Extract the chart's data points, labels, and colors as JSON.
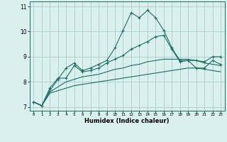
{
  "xlabel": "Humidex (Indice chaleur)",
  "x_ticks": [
    0,
    1,
    2,
    3,
    4,
    5,
    6,
    7,
    8,
    9,
    10,
    11,
    12,
    13,
    14,
    15,
    16,
    17,
    18,
    19,
    20,
    21,
    22,
    23
  ],
  "ylim": [
    6.85,
    11.2
  ],
  "xlim": [
    -0.5,
    23.5
  ],
  "yticks": [
    7,
    8,
    9,
    10,
    11
  ],
  "bg_color": "#daf0ee",
  "line_color": "#1a6e64",
  "grid_color": "#aacccc",
  "line1": [
    7.2,
    7.05,
    7.65,
    8.1,
    8.55,
    8.75,
    8.45,
    8.55,
    8.7,
    8.85,
    9.35,
    10.05,
    10.75,
    10.55,
    10.85,
    10.55,
    10.05,
    9.35,
    8.85,
    8.85,
    8.85,
    8.8,
    9.0,
    9.0
  ],
  "line2": [
    7.2,
    7.05,
    7.75,
    8.15,
    8.15,
    8.65,
    8.4,
    8.45,
    8.55,
    8.75,
    8.9,
    9.05,
    9.3,
    9.45,
    9.6,
    9.8,
    9.85,
    9.3,
    8.8,
    8.85,
    8.55,
    8.55,
    8.85,
    8.7
  ],
  "line3": [
    7.2,
    7.05,
    7.6,
    7.8,
    8.0,
    8.1,
    8.2,
    8.25,
    8.3,
    8.4,
    8.5,
    8.55,
    8.65,
    8.7,
    8.8,
    8.85,
    8.9,
    8.9,
    8.9,
    8.9,
    8.85,
    8.75,
    8.7,
    8.65
  ],
  "line4": [
    7.2,
    7.05,
    7.55,
    7.65,
    7.75,
    7.85,
    7.9,
    7.95,
    8.0,
    8.05,
    8.1,
    8.15,
    8.2,
    8.25,
    8.3,
    8.35,
    8.4,
    8.45,
    8.5,
    8.55,
    8.55,
    8.5,
    8.45,
    8.4
  ]
}
